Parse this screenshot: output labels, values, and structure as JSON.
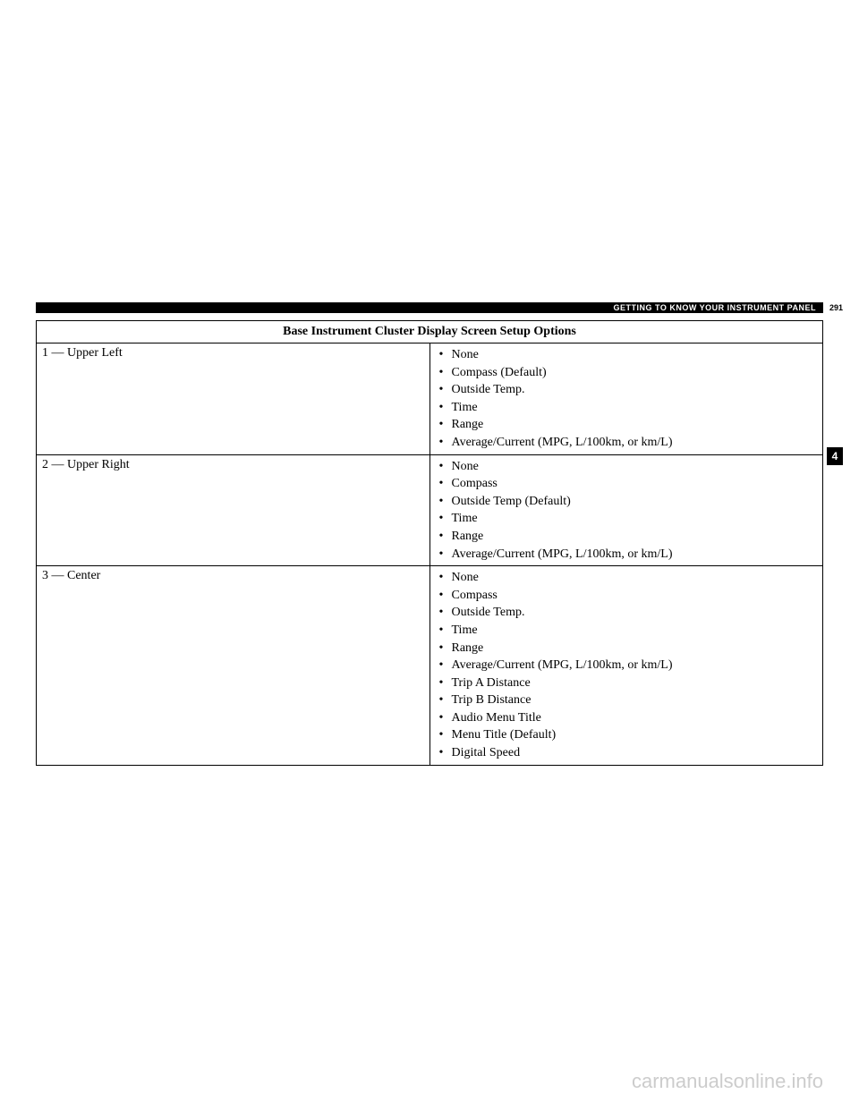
{
  "header": {
    "section_title": "GETTING TO KNOW YOUR INSTRUMENT PANEL",
    "page_number": "291"
  },
  "section_tab": "4",
  "table": {
    "title": "Base Instrument Cluster Display Screen Setup Options",
    "rows": [
      {
        "label": "1 — Upper Left",
        "options": [
          "None",
          "Compass (Default)",
          "Outside Temp.",
          "Time",
          "Range",
          "Average/Current (MPG, L/100km, or km/L)"
        ]
      },
      {
        "label": "2 — Upper Right",
        "options": [
          "None",
          "Compass",
          "Outside Temp (Default)",
          "Time",
          "Range",
          "Average/Current (MPG, L/100km, or km/L)"
        ]
      },
      {
        "label": "3 — Center",
        "options": [
          "None",
          "Compass",
          "Outside Temp.",
          "Time",
          "Range",
          "Average/Current (MPG, L/100km, or km/L)",
          "Trip A Distance",
          "Trip B Distance",
          "Audio Menu Title",
          "Menu Title (Default)",
          "Digital Speed"
        ]
      }
    ]
  },
  "watermark": "carmanualsonline.info"
}
